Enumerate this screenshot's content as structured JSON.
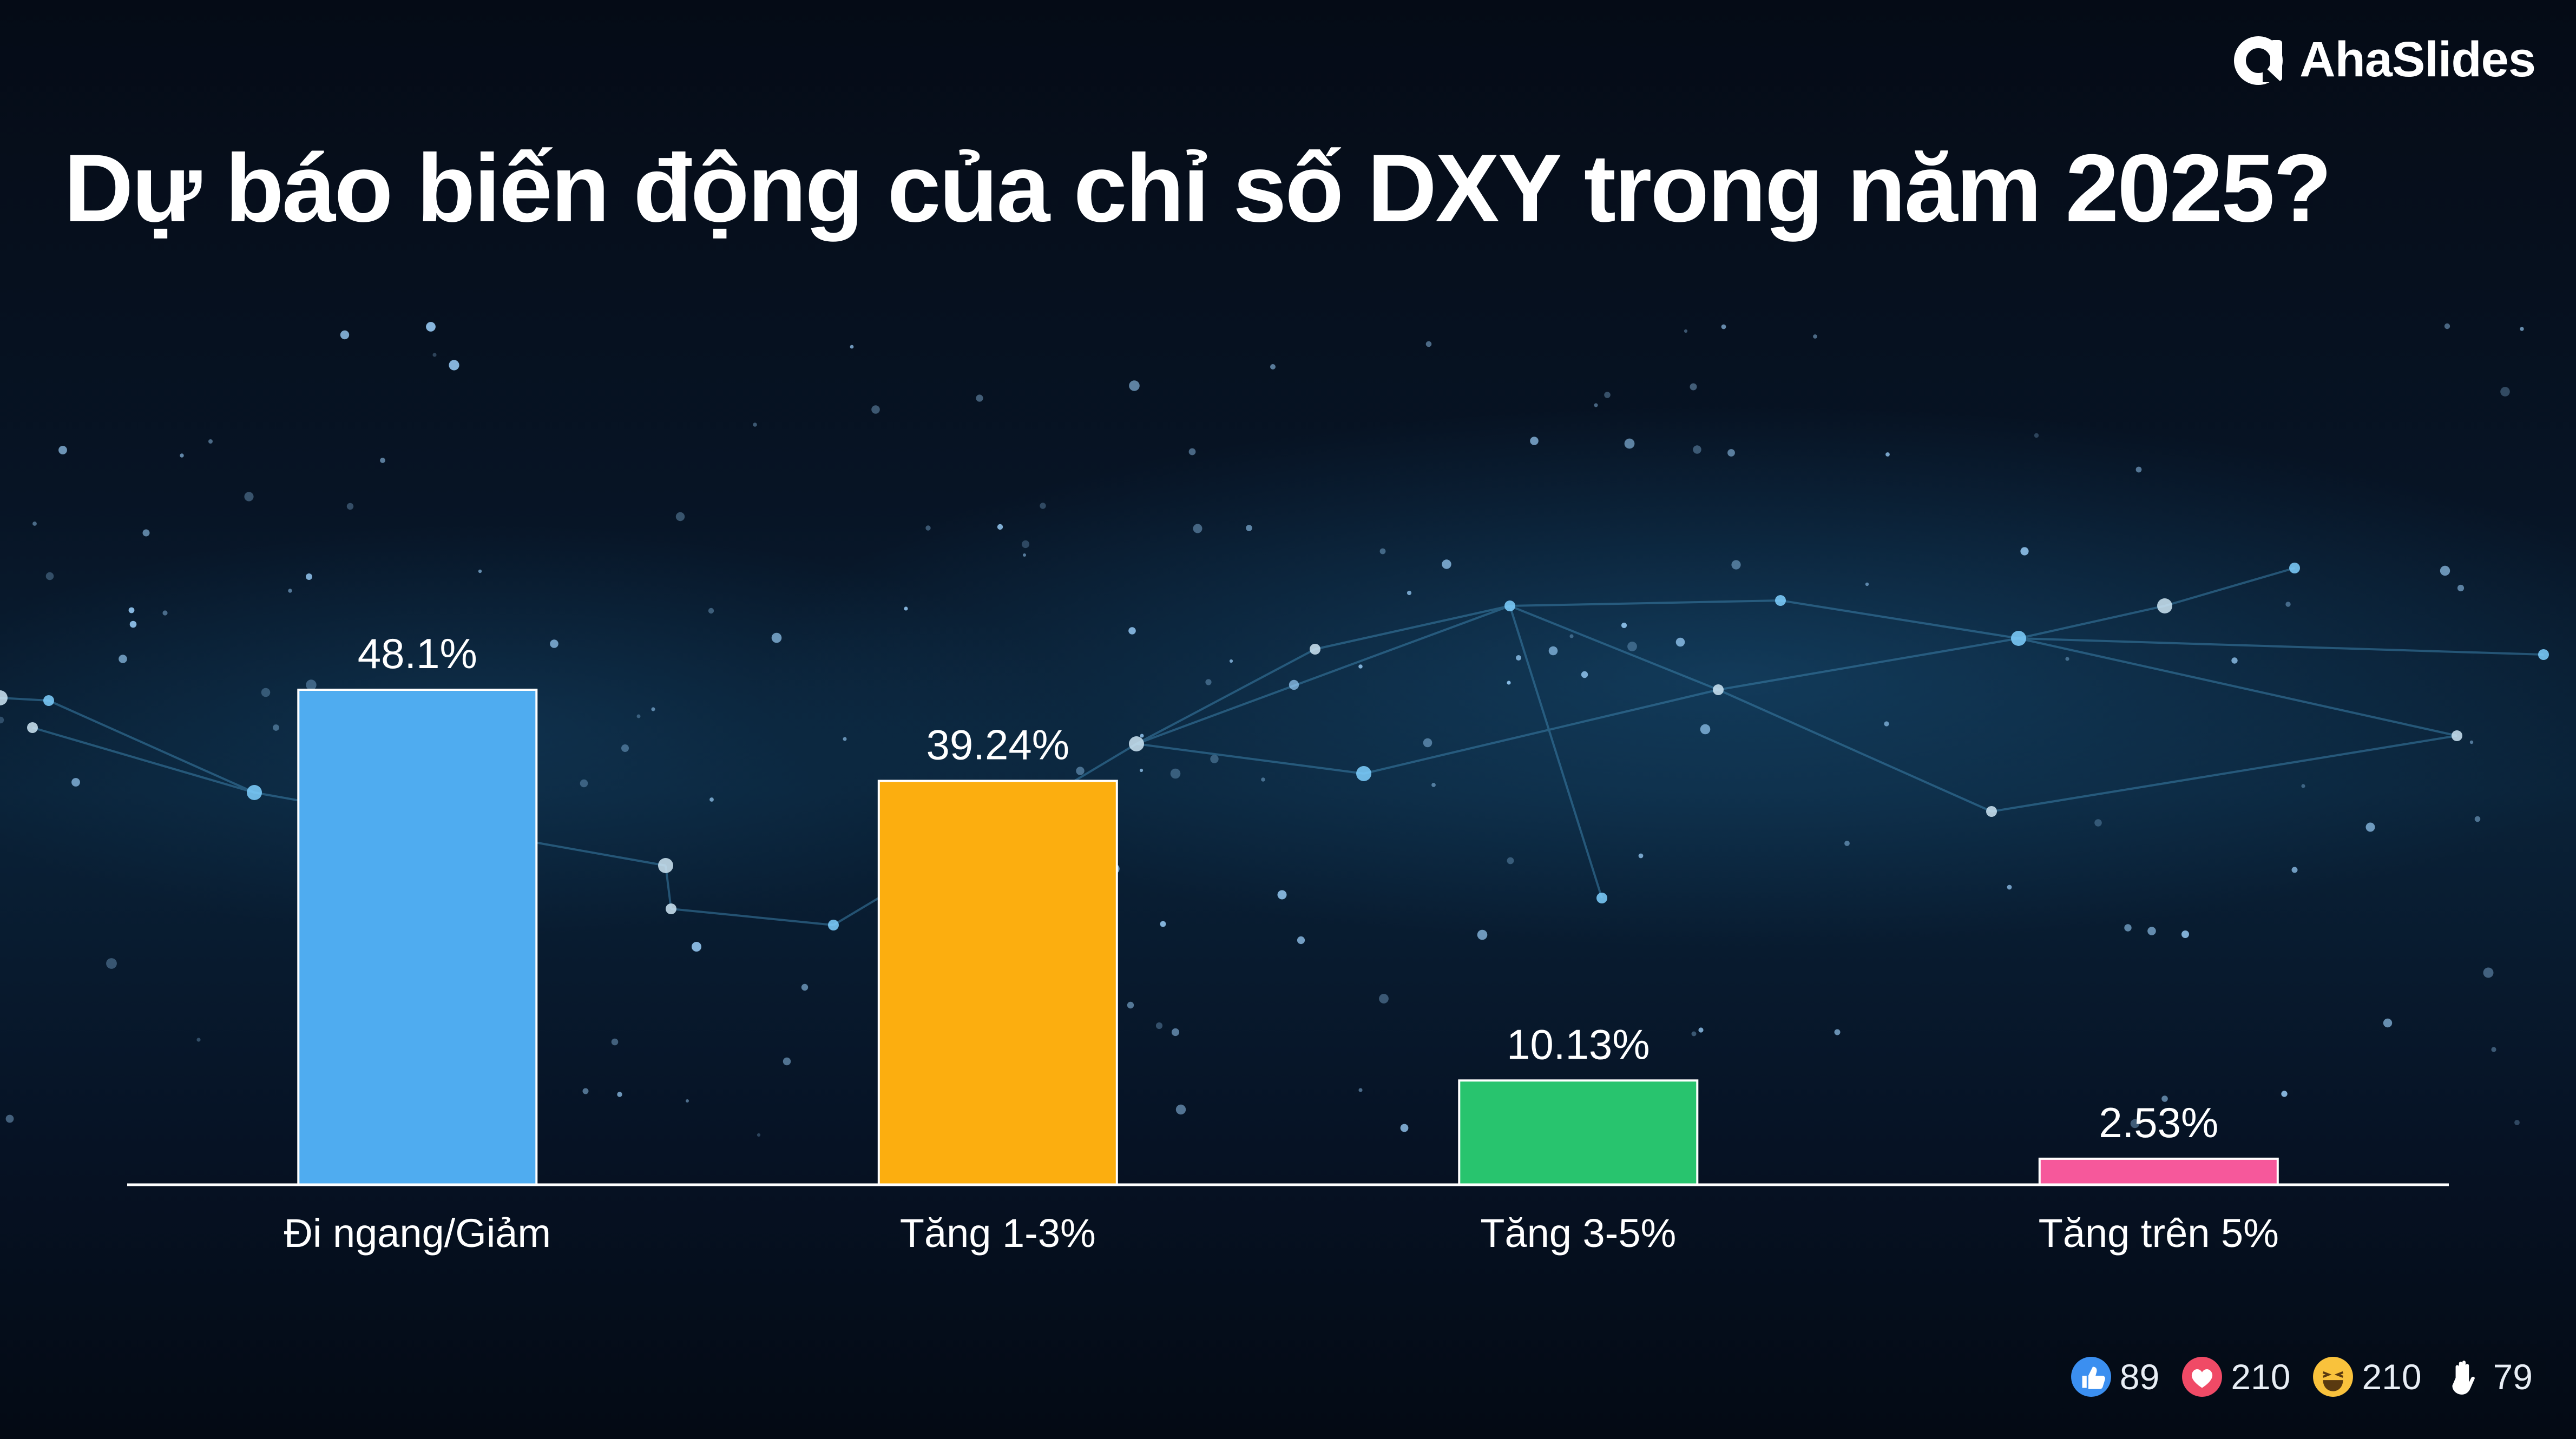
{
  "brand": {
    "name": "AhaSlides"
  },
  "slide": {
    "title": "Dự báo biến động của chỉ số DXY trong năm 2025?"
  },
  "chart_data": {
    "type": "bar",
    "categories": [
      "Đi ngang/Giảm",
      "Tăng 1-3%",
      "Tăng 3-5%",
      "Tăng trên 5%"
    ],
    "values": [
      48.1,
      39.24,
      10.13,
      2.53
    ],
    "value_labels": [
      "48.1%",
      "39.24%",
      "10.13%",
      "2.53%"
    ],
    "colors": [
      "#4facf0",
      "#fcae0f",
      "#28c46e",
      "#f6589b"
    ],
    "title": "Dự báo biến động của chỉ số DXY trong năm 2025?",
    "xlabel": "",
    "ylabel": "",
    "ylim": [
      0,
      48.1
    ],
    "grid": false,
    "legend": "none"
  },
  "reactions": [
    {
      "icon": "thumbs-up-icon",
      "count": "89",
      "color": "#3b8ff0"
    },
    {
      "icon": "heart-icon",
      "count": "210",
      "color": "#f04a66"
    },
    {
      "icon": "laughing-face-icon",
      "count": "210",
      "color": "#f9c23c"
    },
    {
      "icon": "raised-hand-icon",
      "count": "79",
      "color": "#ffffff"
    }
  ]
}
